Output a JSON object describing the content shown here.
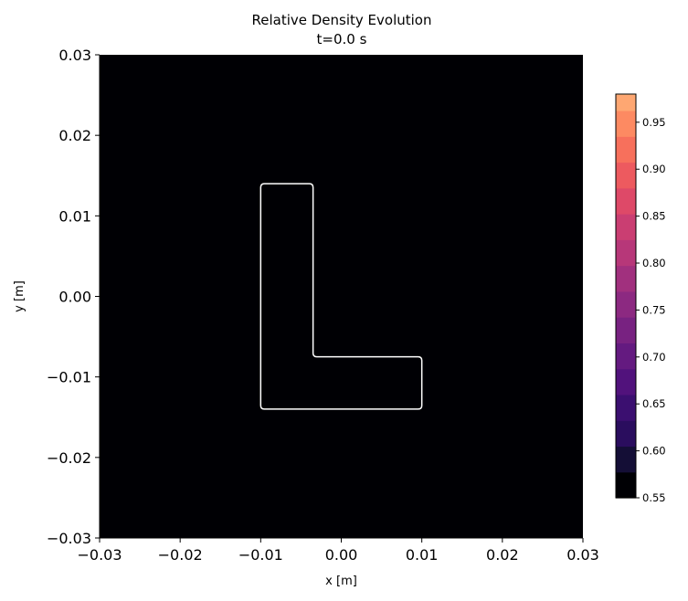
{
  "chart_data": {
    "type": "heatmap",
    "title": "Relative Density Evolution",
    "subtitle": "t=0.0 s",
    "xlabel": "x [m]",
    "ylabel": "y [m]",
    "xlim": [
      -0.03,
      0.03
    ],
    "ylim": [
      -0.03,
      0.03
    ],
    "x_ticks": [
      -0.03,
      -0.02,
      -0.01,
      0.0,
      0.01,
      0.02,
      0.03
    ],
    "x_tick_labels": [
      "−0.03",
      "−0.02",
      "−0.01",
      "0.00",
      "0.01",
      "0.02",
      "0.03"
    ],
    "y_ticks": [
      -0.03,
      -0.02,
      -0.01,
      0.0,
      0.01,
      0.02,
      0.03
    ],
    "y_tick_labels": [
      "−0.03",
      "−0.02",
      "−0.01",
      "0.00",
      "0.01",
      "0.02",
      "0.03"
    ],
    "field_value": 0.55,
    "contour": {
      "color": "#ffffff",
      "shape": "L",
      "vertices": [
        [
          -0.01,
          0.014
        ],
        [
          -0.0035,
          0.014
        ],
        [
          -0.0035,
          -0.0075
        ],
        [
          0.01,
          -0.0075
        ],
        [
          0.01,
          -0.014
        ],
        [
          -0.01,
          -0.014
        ]
      ]
    },
    "colorbar": {
      "colormap": "magma",
      "min": 0.55,
      "max": 0.98,
      "ticks": [
        0.55,
        0.6,
        0.65,
        0.7,
        0.75,
        0.8,
        0.85,
        0.9,
        0.95
      ],
      "tick_labels": [
        "0.55",
        "0.60",
        "0.65",
        "0.70",
        "0.75",
        "0.80",
        "0.85",
        "0.90",
        "0.95"
      ],
      "levels": [
        0.55,
        0.5775,
        0.605,
        0.6325,
        0.66,
        0.6875,
        0.715,
        0.7425,
        0.77,
        0.7975,
        0.825,
        0.8525,
        0.88,
        0.9075,
        0.935,
        0.9625,
        0.98
      ],
      "level_colors": [
        "#000004",
        "#140e36",
        "#2a0d5e",
        "#3b0f70",
        "#51127c",
        "#641a80",
        "#782281",
        "#8c2981",
        "#a1307e",
        "#b73779",
        "#ca3e72",
        "#de4968",
        "#ed5a5f",
        "#f7705c",
        "#fd8a62",
        "#fea772",
        "#fec488",
        "#fde2a3",
        "#fcfdbf"
      ]
    }
  }
}
